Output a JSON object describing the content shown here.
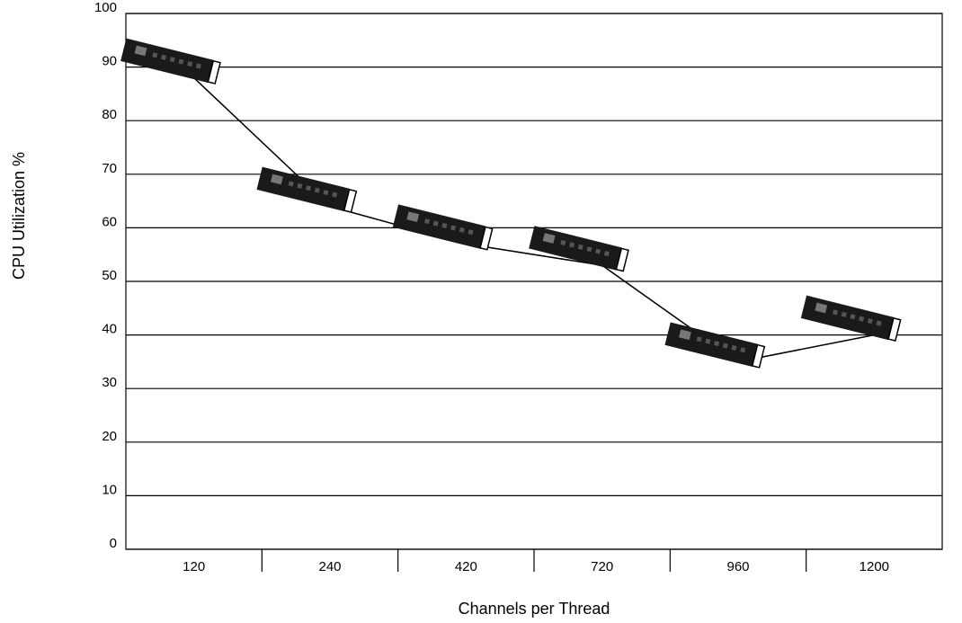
{
  "chart_data": {
    "type": "line",
    "x_label": "Channels per Thread",
    "y_label": "CPU Utilization %",
    "categories": [
      "120",
      "240",
      "420",
      "720",
      "960",
      "1200"
    ],
    "values": [
      88,
      64,
      57,
      53,
      35,
      40
    ],
    "color": "#000000",
    "ylim": [
      0,
      100
    ],
    "yticks": [
      0,
      10,
      20,
      30,
      40,
      50,
      60,
      70,
      80,
      90,
      100
    ],
    "grid": true
  }
}
